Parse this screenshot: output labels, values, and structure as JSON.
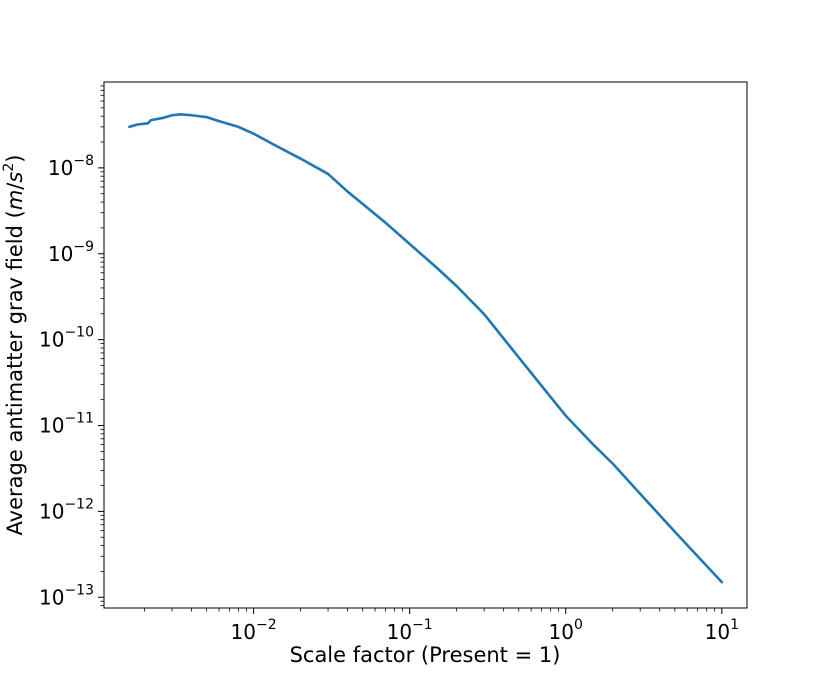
{
  "chart_data": {
    "type": "line",
    "title": "",
    "xlabel": "Scale factor (Present = 1)",
    "ylabel_parts": {
      "prefix": "Average antimatter grav field (",
      "unit_m": "m",
      "slash": "/",
      "unit_s": "s",
      "exponent": "2",
      "suffix": ")"
    },
    "x_scale": "log",
    "y_scale": "log",
    "xlim": [
      0.0011,
      14.5
    ],
    "ylim": [
      7.5e-14,
      1e-07
    ],
    "grid": false,
    "legend": "none",
    "line_color": "#1f77b4",
    "x_major_ticks": [
      {
        "value": 0.01,
        "base": "10",
        "exp": "−2"
      },
      {
        "value": 0.1,
        "base": "10",
        "exp": "−1"
      },
      {
        "value": 1,
        "base": "10",
        "exp": "0"
      },
      {
        "value": 10,
        "base": "10",
        "exp": "1"
      }
    ],
    "y_major_ticks": [
      {
        "value": 1e-08,
        "base": "10",
        "exp": "−8"
      },
      {
        "value": 1e-09,
        "base": "10",
        "exp": "−9"
      },
      {
        "value": 1e-10,
        "base": "10",
        "exp": "−10"
      },
      {
        "value": 1e-11,
        "base": "10",
        "exp": "−11"
      },
      {
        "value": 1e-12,
        "base": "10",
        "exp": "−12"
      },
      {
        "value": 1e-13,
        "base": "10",
        "exp": "−13"
      }
    ],
    "series": [
      {
        "x": [
          0.0016,
          0.0018,
          0.0021,
          0.0022,
          0.0026,
          0.003,
          0.0034,
          0.004,
          0.005,
          0.006,
          0.008,
          0.01,
          0.014,
          0.02,
          0.03,
          0.04,
          0.05,
          0.07,
          0.1,
          0.15,
          0.2,
          0.3,
          0.5,
          0.7,
          1.0,
          1.5,
          2.0,
          3.0,
          5.0,
          7.0,
          10.0
        ],
        "y": [
          3e-08,
          3.2e-08,
          3.3e-08,
          3.6e-08,
          3.8e-08,
          4.1e-08,
          4.2e-08,
          4.1e-08,
          3.9e-08,
          3.5e-08,
          3e-08,
          2.5e-08,
          1.8e-08,
          1.28e-08,
          8.5e-09,
          5.3e-09,
          3.8e-09,
          2.3e-09,
          1.3e-09,
          6.8e-10,
          4.2e-10,
          1.98e-10,
          6.2e-11,
          2.9e-11,
          1.3e-11,
          6e-12,
          3.6e-12,
          1.6e-12,
          5.8e-13,
          3e-13,
          1.5e-13
        ]
      }
    ]
  }
}
